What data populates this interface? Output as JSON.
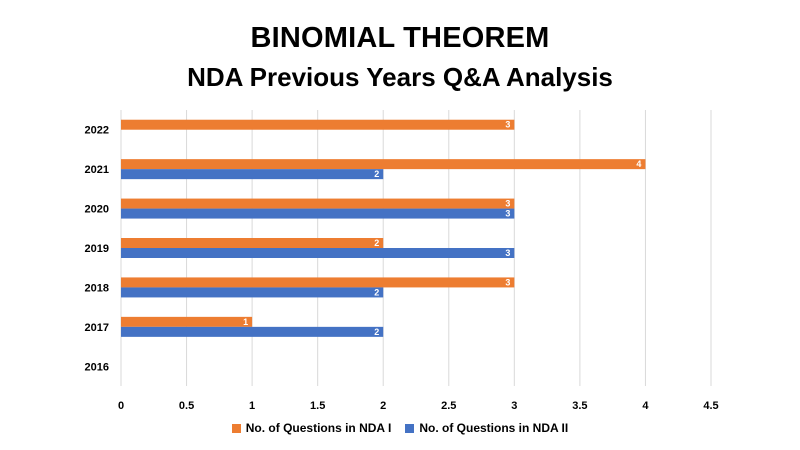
{
  "title": "BINOMIAL THEOREM",
  "subtitle": "NDA Previous Years Q&A Analysis",
  "chart_data": {
    "type": "bar",
    "orientation": "horizontal",
    "categories": [
      "2022",
      "2021",
      "2020",
      "2019",
      "2018",
      "2017",
      "2016"
    ],
    "series": [
      {
        "name": "No. of Questions in NDA I",
        "color": "#ED7D31",
        "values": [
          3,
          4,
          3,
          2,
          3,
          1,
          null
        ]
      },
      {
        "name": "No. of Questions in NDA II",
        "color": "#4472C4",
        "values": [
          null,
          2,
          3,
          3,
          2,
          2,
          null
        ]
      }
    ],
    "xlim": [
      0,
      4.5
    ],
    "xticks": [
      "0",
      "0.5",
      "1",
      "1.5",
      "2",
      "2.5",
      "3",
      "3.5",
      "4",
      "4.5"
    ],
    "grid": true,
    "data_labels": true,
    "legend_position": "bottom"
  }
}
